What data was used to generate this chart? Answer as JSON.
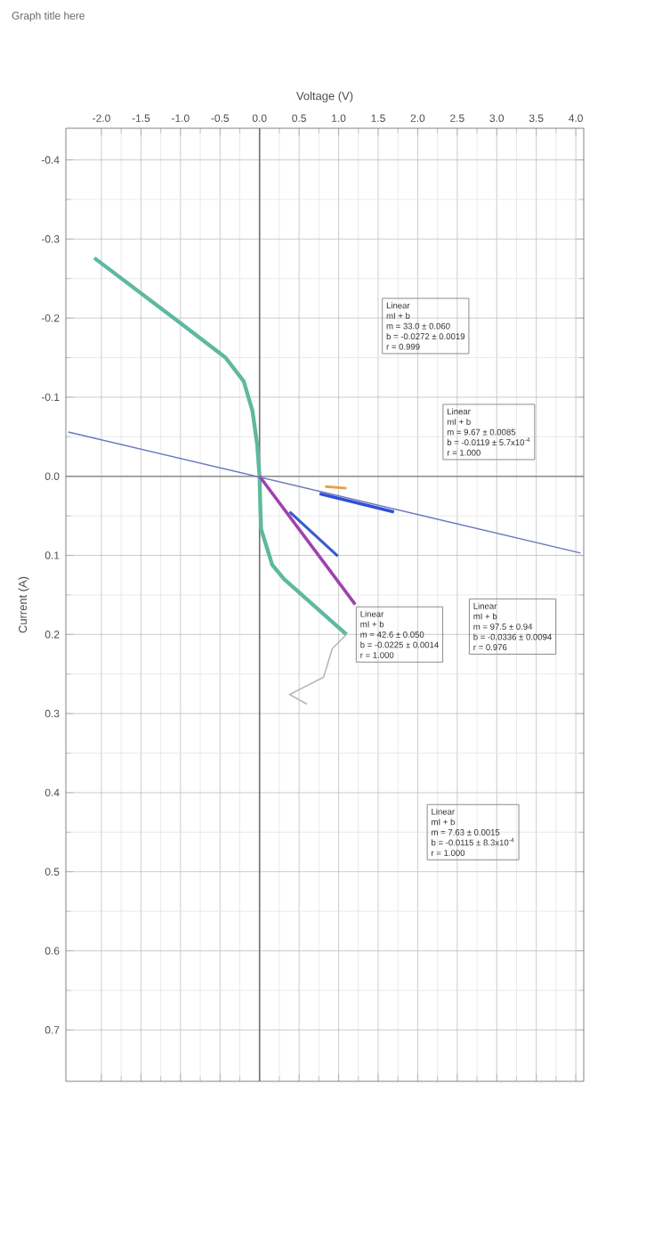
{
  "chart_data": {
    "type": "line",
    "title": "Graph title here",
    "xlabel": "Voltage (V)",
    "ylabel": "Current (A)",
    "xlim": [
      -2.45,
      4.1
    ],
    "ylim": [
      0.765,
      -0.44
    ],
    "xticks": [
      {
        "value": -2,
        "label": "-2.0"
      },
      {
        "value": -1.5,
        "label": "-1.5"
      },
      {
        "value": -1,
        "label": "-1.0"
      },
      {
        "value": -0.5,
        "label": "-0.5"
      },
      {
        "value": 0,
        "label": "0.0"
      },
      {
        "value": 0.5,
        "label": "0.5"
      },
      {
        "value": 1,
        "label": "1.0"
      },
      {
        "value": 1.5,
        "label": "1.5"
      },
      {
        "value": 2,
        "label": "2.0"
      },
      {
        "value": 2.5,
        "label": "2.5"
      },
      {
        "value": 3,
        "label": "3.0"
      },
      {
        "value": 3.5,
        "label": "3.5"
      },
      {
        "value": 4,
        "label": "4.0"
      }
    ],
    "yticks": [
      {
        "value": -0.4,
        "label": "-0.4"
      },
      {
        "value": -0.3,
        "label": "-0.3"
      },
      {
        "value": -0.2,
        "label": "-0.2"
      },
      {
        "value": -0.1,
        "label": "-0.1"
      },
      {
        "value": 0,
        "label": "0.0"
      },
      {
        "value": 0.1,
        "label": "0.1"
      },
      {
        "value": 0.2,
        "label": "0.2"
      },
      {
        "value": 0.3,
        "label": "0.3"
      },
      {
        "value": 0.4,
        "label": "0.4"
      },
      {
        "value": 0.5,
        "label": "0.5"
      },
      {
        "value": 0.6,
        "label": "0.6"
      },
      {
        "value": 0.7,
        "label": "0.7"
      }
    ],
    "grid": true,
    "marker": "none",
    "line_style": "solid",
    "series": [
      {
        "color": "#5fb8a0",
        "x": [
          -2.09,
          -1.03,
          -0.43,
          -0.2,
          -0.09,
          -0.03,
          0,
          0.01,
          0.02,
          0.16,
          0.31,
          1.1
        ],
        "values": [
          -0.276,
          -0.196,
          -0.15,
          -0.12,
          -0.083,
          -0.04,
          0,
          0.04,
          0.067,
          0.112,
          0.13,
          0.2
        ]
      },
      {
        "color": "#b8b8b8",
        "x": [
          1.1,
          0.92,
          0.81,
          0.38,
          0.6
        ],
        "values": [
          0.2,
          0.218,
          0.254,
          0.276,
          0.288
        ]
      },
      {
        "color": "#a040b0",
        "x": [
          0,
          1.21
        ],
        "values": [
          0,
          0.162
        ]
      },
      {
        "color": "#3a5ad0",
        "x": [
          0.38,
          0.99
        ],
        "values": [
          0.045,
          0.101
        ]
      },
      {
        "color": "#3050d8",
        "x": [
          0.76,
          1.7
        ],
        "values": [
          0.022,
          0.045
        ]
      },
      {
        "color": "#e8a040",
        "x": [
          0.83,
          1.1
        ],
        "values": [
          0.013,
          0.015
        ]
      },
      {
        "color": "#6a78c0",
        "x": [
          -2.42,
          4.06
        ],
        "values": [
          -0.056,
          0.097
        ]
      }
    ],
    "ref_lines": [
      {
        "axis": "x",
        "value": 0,
        "color": "#707070"
      },
      {
        "axis": "y",
        "value": 0,
        "color": "#8c8c8c"
      }
    ],
    "annotations": [
      "Linear",
      "mI + b",
      "m = 33.0  ± 0.060",
      "b = -0.0272 ± 0.0019",
      "r = 0.999",
      "Linear",
      "mI + b",
      "m = 9.67  ± 0.0085",
      "b = -0.0119 ± 5.7x10$^{-4}$",
      "r = 1.000",
      "Linear",
      "mI + b",
      "m = 97.5  ± 0.94",
      "b = -0.0336 ± 0.0094",
      "r = 0.976",
      "Linear",
      "mI + b",
      "m = 42.6  ± 0.050",
      "b = -0.0225 ± 0.0014",
      "r = 1.000",
      "Linear",
      "mI + b",
      "m = 7.63  ± 0.0015",
      "b = -0.0115 ± 8.3x10$^{-4}$",
      "r = 1.000"
    ]
  }
}
